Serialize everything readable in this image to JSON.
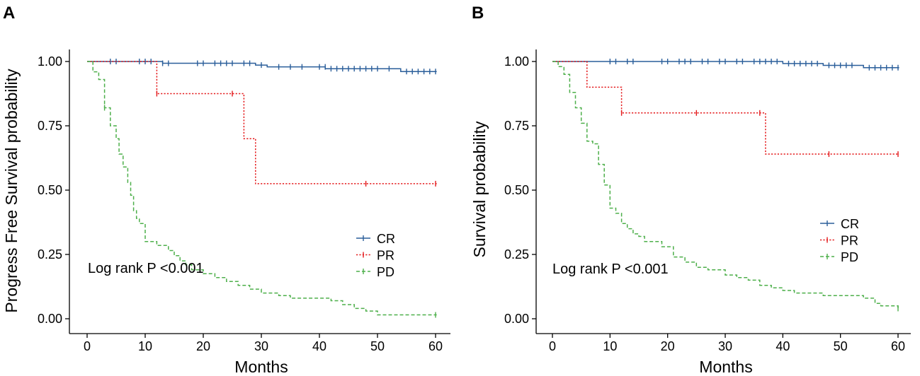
{
  "colors": {
    "CR": "#2A5E9A",
    "PR": "#E41A1C",
    "PD": "#4DAF4A",
    "axis": "#000000"
  },
  "chart_data": [
    {
      "type": "line",
      "subtype": "kaplan-meier",
      "panel": "A",
      "xlabel": "Months",
      "ylabel": "Progress Free Survival probability",
      "xlim": [
        0,
        60
      ],
      "ylim": [
        0,
        1
      ],
      "xticks": [
        0,
        10,
        20,
        30,
        40,
        50,
        60
      ],
      "yticks": [
        "0.00",
        "0.25",
        "0.50",
        "0.75",
        "1.00"
      ],
      "annotation": "Log rank P <0.001",
      "legend": {
        "position": "right",
        "labels": [
          "CR",
          "PR",
          "PD"
        ]
      },
      "series": [
        {
          "name": "CR",
          "style": "solid",
          "steps": [
            [
              0,
              1.0
            ],
            [
              13,
              0.993
            ],
            [
              29,
              0.986
            ],
            [
              31,
              0.979
            ],
            [
              41,
              0.972
            ],
            [
              54,
              0.961
            ],
            [
              60.2,
              0.961
            ]
          ],
          "censor": [
            [
              4,
              1
            ],
            [
              5,
              1
            ],
            [
              9,
              1
            ],
            [
              10,
              1
            ],
            [
              11,
              1
            ],
            [
              13,
              0.993
            ],
            [
              14,
              0.993
            ],
            [
              19,
              0.993
            ],
            [
              20,
              0.993
            ],
            [
              22,
              0.993
            ],
            [
              23,
              0.993
            ],
            [
              24,
              0.993
            ],
            [
              25,
              0.993
            ],
            [
              27,
              0.993
            ],
            [
              28,
              0.993
            ],
            [
              30,
              0.986
            ],
            [
              33,
              0.979
            ],
            [
              35,
              0.979
            ],
            [
              37,
              0.979
            ],
            [
              40,
              0.979
            ],
            [
              41,
              0.979
            ],
            [
              42,
              0.972
            ],
            [
              43,
              0.972
            ],
            [
              44,
              0.972
            ],
            [
              45,
              0.972
            ],
            [
              46,
              0.972
            ],
            [
              47,
              0.972
            ],
            [
              48,
              0.972
            ],
            [
              49,
              0.972
            ],
            [
              50,
              0.972
            ],
            [
              52,
              0.972
            ],
            [
              55,
              0.961
            ],
            [
              56,
              0.961
            ],
            [
              57,
              0.961
            ],
            [
              58,
              0.961
            ],
            [
              59,
              0.961
            ],
            [
              60,
              0.961
            ]
          ]
        },
        {
          "name": "PR",
          "style": "dotted",
          "steps": [
            [
              0,
              1.0
            ],
            [
              12,
              0.875
            ],
            [
              27,
              0.7
            ],
            [
              29,
              0.525
            ],
            [
              60.2,
              0.525
            ]
          ],
          "censor": [
            [
              12,
              0.875
            ],
            [
              25,
              0.875
            ],
            [
              48,
              0.525
            ],
            [
              60,
              0.525
            ]
          ]
        },
        {
          "name": "PD",
          "style": "dashed",
          "steps": [
            [
              0,
              1.0
            ],
            [
              1,
              0.96
            ],
            [
              2,
              0.93
            ],
            [
              3,
              0.82
            ],
            [
              4,
              0.75
            ],
            [
              5,
              0.7
            ],
            [
              5.5,
              0.64
            ],
            [
              6.2,
              0.59
            ],
            [
              7,
              0.53
            ],
            [
              7.5,
              0.48
            ],
            [
              8,
              0.42
            ],
            [
              8.5,
              0.39
            ],
            [
              9,
              0.37
            ],
            [
              10,
              0.3
            ],
            [
              12,
              0.285
            ],
            [
              14,
              0.265
            ],
            [
              15,
              0.245
            ],
            [
              16,
              0.225
            ],
            [
              17,
              0.21
            ],
            [
              18,
              0.19
            ],
            [
              20,
              0.175
            ],
            [
              22,
              0.16
            ],
            [
              24,
              0.145
            ],
            [
              26,
              0.13
            ],
            [
              28,
              0.115
            ],
            [
              30,
              0.1
            ],
            [
              33,
              0.09
            ],
            [
              35,
              0.08
            ],
            [
              42,
              0.07
            ],
            [
              44,
              0.055
            ],
            [
              46,
              0.04
            ],
            [
              48,
              0.03
            ],
            [
              50,
              0.015
            ],
            [
              60.2,
              0.015
            ]
          ],
          "censor": [
            [
              3,
              0.82
            ],
            [
              60,
              0.015
            ]
          ]
        }
      ]
    },
    {
      "type": "line",
      "subtype": "kaplan-meier",
      "panel": "B",
      "xlabel": "Months",
      "ylabel": "Survival probability",
      "xlim": [
        0,
        60
      ],
      "ylim": [
        0,
        1
      ],
      "xticks": [
        0,
        10,
        20,
        30,
        40,
        50,
        60
      ],
      "yticks": [
        "0.00",
        "0.25",
        "0.50",
        "0.75",
        "1.00"
      ],
      "annotation": "Log rank P <0.001",
      "legend": {
        "position": "right",
        "labels": [
          "CR",
          "PR",
          "PD"
        ]
      },
      "series": [
        {
          "name": "CR",
          "style": "solid",
          "steps": [
            [
              0,
              1.0
            ],
            [
              40,
              0.992
            ],
            [
              47,
              0.985
            ],
            [
              54,
              0.976
            ],
            [
              60.2,
              0.976
            ]
          ],
          "censor": [
            [
              10,
              1
            ],
            [
              11,
              1
            ],
            [
              13,
              1
            ],
            [
              14,
              1
            ],
            [
              19,
              1
            ],
            [
              20,
              1
            ],
            [
              22,
              1
            ],
            [
              23,
              1
            ],
            [
              24,
              1
            ],
            [
              26,
              1
            ],
            [
              27,
              1
            ],
            [
              29,
              1
            ],
            [
              30,
              1
            ],
            [
              32,
              1
            ],
            [
              33,
              1
            ],
            [
              35,
              1
            ],
            [
              36,
              1
            ],
            [
              37,
              1
            ],
            [
              38,
              1
            ],
            [
              39,
              1
            ],
            [
              41,
              0.992
            ],
            [
              42,
              0.992
            ],
            [
              43,
              0.992
            ],
            [
              44,
              0.992
            ],
            [
              45,
              0.992
            ],
            [
              46,
              0.992
            ],
            [
              48,
              0.985
            ],
            [
              49,
              0.985
            ],
            [
              50,
              0.985
            ],
            [
              51,
              0.985
            ],
            [
              52,
              0.985
            ],
            [
              55,
              0.976
            ],
            [
              56,
              0.976
            ],
            [
              57,
              0.976
            ],
            [
              58,
              0.976
            ],
            [
              59,
              0.976
            ],
            [
              60,
              0.976
            ]
          ]
        },
        {
          "name": "PR",
          "style": "dotted",
          "steps": [
            [
              0,
              1.0
            ],
            [
              6,
              0.9
            ],
            [
              12,
              0.8
            ],
            [
              37,
              0.64
            ],
            [
              60.2,
              0.64
            ]
          ],
          "censor": [
            [
              12,
              0.8
            ],
            [
              25,
              0.8
            ],
            [
              36,
              0.8
            ],
            [
              48,
              0.64
            ],
            [
              60,
              0.64
            ]
          ]
        },
        {
          "name": "PD",
          "style": "dashed",
          "steps": [
            [
              0,
              1.0
            ],
            [
              1,
              0.98
            ],
            [
              2,
              0.95
            ],
            [
              3,
              0.88
            ],
            [
              4,
              0.82
            ],
            [
              5,
              0.76
            ],
            [
              6,
              0.69
            ],
            [
              7,
              0.68
            ],
            [
              8,
              0.6
            ],
            [
              9,
              0.52
            ],
            [
              10,
              0.43
            ],
            [
              11,
              0.41
            ],
            [
              12,
              0.37
            ],
            [
              13,
              0.35
            ],
            [
              14,
              0.33
            ],
            [
              15,
              0.32
            ],
            [
              16,
              0.3
            ],
            [
              19,
              0.28
            ],
            [
              21,
              0.24
            ],
            [
              23,
              0.22
            ],
            [
              25,
              0.2
            ],
            [
              27,
              0.19
            ],
            [
              30,
              0.17
            ],
            [
              32,
              0.16
            ],
            [
              34,
              0.15
            ],
            [
              36,
              0.13
            ],
            [
              38,
              0.12
            ],
            [
              40,
              0.11
            ],
            [
              42,
              0.1
            ],
            [
              47,
              0.09
            ],
            [
              54,
              0.08
            ],
            [
              56,
              0.06
            ],
            [
              57,
              0.05
            ],
            [
              60,
              0.04
            ],
            [
              60.2,
              0.04
            ]
          ],
          "censor": [
            [
              60,
              0.04
            ]
          ]
        }
      ]
    }
  ]
}
